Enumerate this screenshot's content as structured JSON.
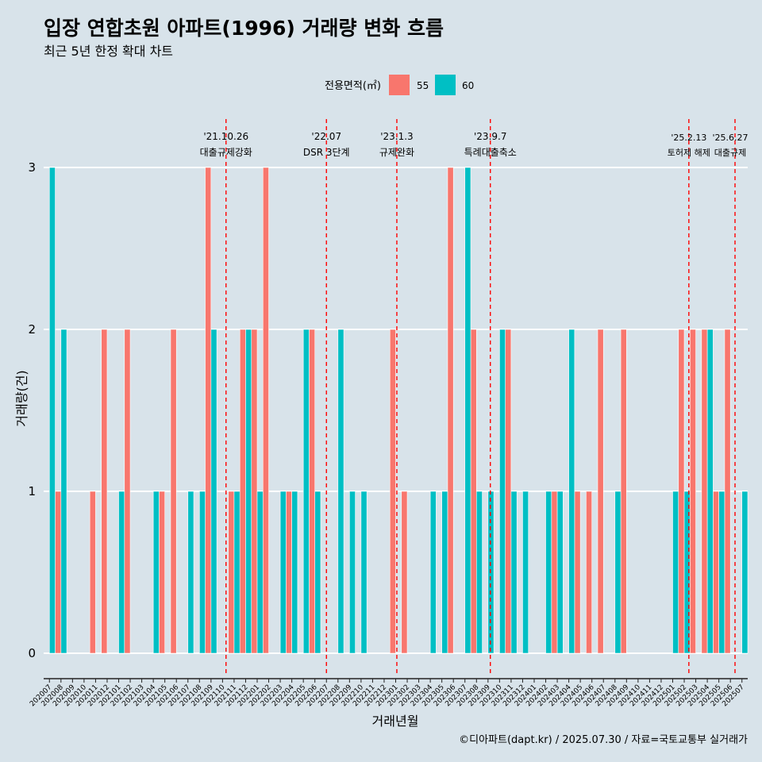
{
  "chart_data": {
    "type": "bar",
    "title": "입장 연합초원 아파트(1996) 거래량 변화 흐름",
    "subtitle": "최근 5년 한정 확대 차트",
    "xlabel": "거래년월",
    "ylabel": "거래량(건)",
    "ylim": [
      0,
      3
    ],
    "yticks": [
      "0",
      "1",
      "2",
      "3"
    ],
    "legend": {
      "title": "전용면적(㎡)",
      "position": "top",
      "items": [
        {
          "label": "55",
          "color": "#F8766D"
        },
        {
          "label": "60",
          "color": "#00BFC4"
        }
      ]
    },
    "categories": [
      "202007",
      "202008",
      "202009",
      "202010",
      "202011",
      "202012",
      "202101",
      "202102",
      "202103",
      "202104",
      "202105",
      "202106",
      "202107",
      "202108",
      "202109",
      "202110",
      "202111",
      "202112",
      "202201",
      "202202",
      "202203",
      "202204",
      "202205",
      "202206",
      "202207",
      "202208",
      "202209",
      "202210",
      "202211",
      "202212",
      "202301",
      "202302",
      "202303",
      "202304",
      "202305",
      "202306",
      "202307",
      "202308",
      "202309",
      "202310",
      "202311",
      "202312",
      "202401",
      "202402",
      "202403",
      "202404",
      "202405",
      "202406",
      "202407",
      "202408",
      "202409",
      "202410",
      "202411",
      "202412",
      "202501",
      "202502",
      "202503",
      "202504",
      "202505",
      "202506",
      "202507"
    ],
    "series": [
      {
        "name": "55",
        "color": "#F8766D",
        "values": [
          0,
          1,
          0,
          0,
          1,
          2,
          0,
          2,
          0,
          0,
          1,
          2,
          0,
          0,
          3,
          0,
          1,
          2,
          2,
          3,
          0,
          1,
          0,
          2,
          0,
          0,
          0,
          0,
          0,
          0,
          2,
          1,
          0,
          0,
          0,
          3,
          0,
          2,
          0,
          0,
          2,
          0,
          0,
          0,
          1,
          0,
          1,
          1,
          2,
          0,
          2,
          0,
          0,
          0,
          0,
          2,
          2,
          2,
          1,
          2,
          0
        ]
      },
      {
        "name": "60",
        "color": "#00BFC4",
        "values": [
          3,
          2,
          0,
          0,
          0,
          0,
          1,
          0,
          0,
          1,
          0,
          0,
          1,
          1,
          2,
          0,
          1,
          2,
          1,
          0,
          1,
          1,
          2,
          1,
          0,
          2,
          1,
          1,
          0,
          0,
          0,
          0,
          0,
          1,
          1,
          0,
          3,
          1,
          1,
          2,
          1,
          1,
          0,
          1,
          1,
          2,
          0,
          0,
          0,
          1,
          0,
          0,
          0,
          0,
          1,
          1,
          0,
          2,
          1,
          0,
          1
        ]
      }
    ],
    "annotations": [
      {
        "date": "'21.10.26",
        "label": "대출규제강화",
        "index": 15.8
      },
      {
        "date": "'22.07",
        "label": "DSR 3단계",
        "index": 24.5
      },
      {
        "date": "'23.1.3",
        "label": "규제완화",
        "index": 30.6
      },
      {
        "date": "'23.9.7",
        "label": "특례대출축소",
        "index": 38.7
      },
      {
        "date": "'25.2.13",
        "label": "토허제 해제",
        "index": 55.9
      },
      {
        "date": "'25.6.27",
        "label": "대출규제",
        "index": 59.9
      }
    ],
    "caption": "©디아파트(dapt.kr) / 2025.07.30 / 자료=국토교통부 실거래가"
  }
}
